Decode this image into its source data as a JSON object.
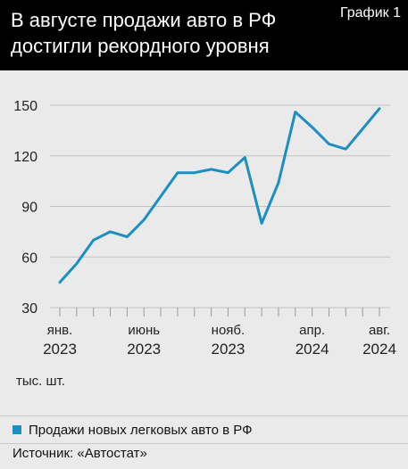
{
  "header": {
    "title": "В августе продажи авто в РФ достигли рекордного уровня",
    "badge": "График 1"
  },
  "legend": {
    "label": "Продажи новых легковых авто в РФ"
  },
  "source": "Источник: «Автостат»",
  "colors": {
    "series": "#1b8ec4",
    "grid": "#c4c4c4",
    "text": "#222222"
  },
  "chart_data": {
    "type": "line",
    "unit_label": "тыс. шт.",
    "ylim": [
      30,
      150
    ],
    "yticks": [
      30,
      60,
      90,
      120,
      150
    ],
    "grid": true,
    "x": [
      "янв. 2023",
      "февр. 2023",
      "март 2023",
      "апр. 2023",
      "май 2023",
      "июнь 2023",
      "июль 2023",
      "авг. 2023",
      "сент. 2023",
      "окт. 2023",
      "нояб. 2023",
      "дек. 2023",
      "янв. 2024",
      "февр. 2024",
      "март 2024",
      "апр. 2024",
      "май 2024",
      "июнь 2024",
      "июль 2024",
      "авг. 2024"
    ],
    "x_tick_labels": [
      {
        "index": 0,
        "line1": "янв.",
        "line2": "2023"
      },
      {
        "index": 5,
        "line1": "июнь",
        "line2": "2023"
      },
      {
        "index": 10,
        "line1": "нояб.",
        "line2": "2023"
      },
      {
        "index": 15,
        "line1": "апр.",
        "line2": "2024"
      },
      {
        "index": 19,
        "line1": "авг.",
        "line2": "2024"
      }
    ],
    "series": [
      {
        "values": [
          45,
          56,
          70,
          75,
          72,
          82,
          96,
          110,
          110,
          112,
          110,
          119,
          80,
          104,
          146,
          137,
          127,
          124,
          136,
          148
        ]
      }
    ]
  }
}
